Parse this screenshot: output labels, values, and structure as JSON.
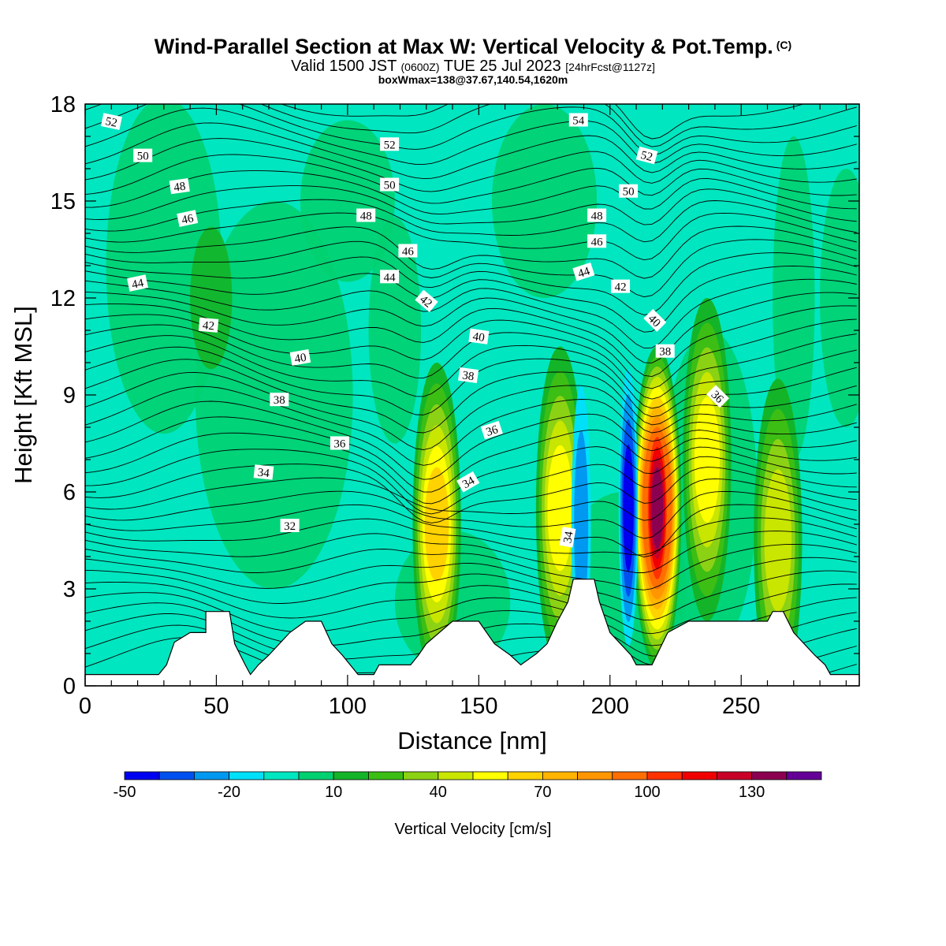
{
  "header": {
    "title": "Wind-Parallel Section at Max W: Vertical Velocity & Pot.Temp.",
    "title_unit": "(C)",
    "valid_prefix": "Valid 1500 JST",
    "valid_utc": "(0600Z)",
    "valid_date": "TUE 25 Jul 2023",
    "forecast": "[24hrFcst@1127z]",
    "box_info": "boxWmax=138@37.67,140.54,1620m"
  },
  "chart_data": {
    "type": "heatmap",
    "xlabel": "Distance [nm]",
    "ylabel": "Height [Kft MSL]",
    "xlim": [
      0,
      295
    ],
    "ylim": [
      0,
      18
    ],
    "x_ticks": [
      0,
      50,
      100,
      150,
      200,
      250
    ],
    "y_ticks": [
      0,
      3,
      6,
      9,
      12,
      15,
      18
    ],
    "colorbar": {
      "label": "Vertical Velocity [cm/s]",
      "tick_labels": [
        "-50",
        "-20",
        "10",
        "40",
        "70",
        "100",
        "130"
      ],
      "tick_values": [
        -50,
        -20,
        10,
        40,
        70,
        100,
        130
      ],
      "levels": [
        -50,
        -40,
        -30,
        -20,
        -10,
        0,
        10,
        20,
        30,
        40,
        50,
        60,
        70,
        80,
        90,
        100,
        110,
        120,
        130,
        140,
        150
      ],
      "colors": [
        "#0000f0",
        "#0050f0",
        "#0098f0",
        "#00e0f8",
        "#00e6c0",
        "#00d070",
        "#14b428",
        "#3cbe14",
        "#8cd214",
        "#c8e600",
        "#ffff00",
        "#ffd200",
        "#ffb400",
        "#ff9600",
        "#ff6e00",
        "#ff3200",
        "#f00000",
        "#c80028",
        "#8c0050",
        "#640096"
      ]
    },
    "updraft_cores": [
      {
        "x": 134,
        "y": 5.0,
        "w": 60
      },
      {
        "x": 181,
        "y": 5.5,
        "w": 50
      },
      {
        "x": 218,
        "y": 5.5,
        "w": 138
      },
      {
        "x": 237,
        "y": 7.0,
        "w": 55
      },
      {
        "x": 264,
        "y": 4.5,
        "w": 45
      }
    ],
    "downdraft_cores": [
      {
        "x": 207,
        "y": 5.5,
        "w": -40
      },
      {
        "x": 189,
        "y": 5.0,
        "w": -22
      }
    ],
    "terrain": [
      [
        0,
        0.35
      ],
      [
        28,
        0.35
      ],
      [
        31,
        0.65
      ],
      [
        34,
        1.35
      ],
      [
        40,
        1.65
      ],
      [
        46,
        1.65
      ],
      [
        46,
        2.3
      ],
      [
        55,
        2.3
      ],
      [
        57,
        1.3
      ],
      [
        61,
        0.65
      ],
      [
        63,
        0.35
      ],
      [
        66,
        0.65
      ],
      [
        70,
        0.95
      ],
      [
        74,
        1.3
      ],
      [
        78,
        1.65
      ],
      [
        84,
        2.0
      ],
      [
        90,
        2.0
      ],
      [
        94,
        1.3
      ],
      [
        98,
        0.95
      ],
      [
        104,
        0.35
      ],
      [
        110,
        0.35
      ],
      [
        112,
        0.65
      ],
      [
        124,
        0.65
      ],
      [
        127,
        0.95
      ],
      [
        130,
        1.3
      ],
      [
        140,
        2.0
      ],
      [
        150,
        2.0
      ],
      [
        156,
        1.3
      ],
      [
        162,
        0.95
      ],
      [
        166,
        0.65
      ],
      [
        172,
        1.0
      ],
      [
        176,
        1.3
      ],
      [
        180,
        2.0
      ],
      [
        184,
        2.6
      ],
      [
        186,
        3.3
      ],
      [
        194,
        3.3
      ],
      [
        196,
        2.6
      ],
      [
        200,
        1.65
      ],
      [
        204,
        1.3
      ],
      [
        208,
        0.95
      ],
      [
        210,
        0.65
      ],
      [
        216,
        0.65
      ],
      [
        222,
        1.65
      ],
      [
        230,
        2.0
      ],
      [
        260,
        2.0
      ],
      [
        262,
        2.3
      ],
      [
        266,
        2.3
      ],
      [
        270,
        1.65
      ],
      [
        274,
        1.3
      ],
      [
        278,
        0.95
      ],
      [
        282,
        0.65
      ],
      [
        284,
        0.35
      ],
      [
        295,
        0.35
      ]
    ],
    "theta_labels": [
      {
        "text": "52",
        "x": 10,
        "y": 17.45,
        "rot": 12
      },
      {
        "text": "50",
        "x": 22,
        "y": 16.4,
        "rot": 0
      },
      {
        "text": "48",
        "x": 36,
        "y": 15.45,
        "rot": -8
      },
      {
        "text": "46",
        "x": 39,
        "y": 14.45,
        "rot": -12
      },
      {
        "text": "44",
        "x": 20,
        "y": 12.45,
        "rot": -12
      },
      {
        "text": "42",
        "x": 47,
        "y": 11.15,
        "rot": 5
      },
      {
        "text": "40",
        "x": 82,
        "y": 10.15,
        "rot": -10
      },
      {
        "text": "38",
        "x": 74,
        "y": 8.85,
        "rot": 0
      },
      {
        "text": "36",
        "x": 97,
        "y": 7.5,
        "rot": 0
      },
      {
        "text": "34",
        "x": 68,
        "y": 6.6,
        "rot": 6
      },
      {
        "text": "32",
        "x": 78,
        "y": 4.95,
        "rot": 0
      },
      {
        "text": "52",
        "x": 116,
        "y": 16.75,
        "rot": 0
      },
      {
        "text": "50",
        "x": 116,
        "y": 15.5,
        "rot": 0
      },
      {
        "text": "48",
        "x": 107,
        "y": 14.55,
        "rot": 0
      },
      {
        "text": "46",
        "x": 123,
        "y": 13.45,
        "rot": 0
      },
      {
        "text": "44",
        "x": 116,
        "y": 12.65,
        "rot": 0
      },
      {
        "text": "42",
        "x": 130,
        "y": 11.9,
        "rot": 40
      },
      {
        "text": "40",
        "x": 150,
        "y": 10.8,
        "rot": 8
      },
      {
        "text": "38",
        "x": 146,
        "y": 9.6,
        "rot": 8
      },
      {
        "text": "36",
        "x": 155,
        "y": 7.9,
        "rot": -18
      },
      {
        "text": "34",
        "x": 146,
        "y": 6.3,
        "rot": -30
      },
      {
        "text": "54",
        "x": 188,
        "y": 17.5,
        "rot": 0
      },
      {
        "text": "52",
        "x": 214,
        "y": 16.4,
        "rot": 15
      },
      {
        "text": "50",
        "x": 207,
        "y": 15.3,
        "rot": 0
      },
      {
        "text": "48",
        "x": 195,
        "y": 14.55,
        "rot": 0
      },
      {
        "text": "46",
        "x": 195,
        "y": 13.75,
        "rot": 0
      },
      {
        "text": "44",
        "x": 190,
        "y": 12.8,
        "rot": -18
      },
      {
        "text": "42",
        "x": 204,
        "y": 12.35,
        "rot": 0
      },
      {
        "text": "40",
        "x": 217,
        "y": 11.3,
        "rot": 45
      },
      {
        "text": "38",
        "x": 221,
        "y": 10.35,
        "rot": 0
      },
      {
        "text": "36",
        "x": 241,
        "y": 8.95,
        "rot": 45
      },
      {
        "text": "34",
        "x": 184,
        "y": 4.6,
        "rot": -80
      }
    ]
  }
}
